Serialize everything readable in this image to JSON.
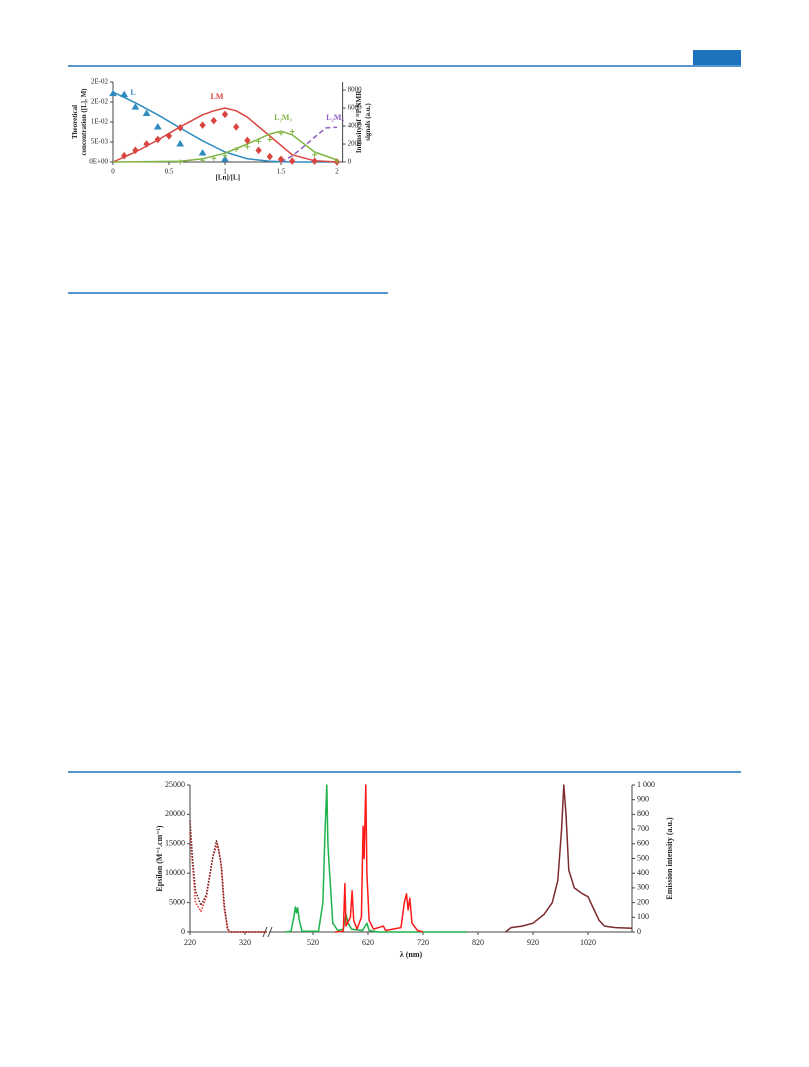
{
  "chart_data": [
    {
      "type": "line",
      "x_label": "[Ln]/[L]",
      "y_label": [
        "Theoretical",
        "concentration ([L], M)"
      ],
      "y2_label": [
        "Intensity of ³¹P NMR",
        "signals (a.u.)"
      ],
      "xlim": [
        0,
        2.05
      ],
      "xticks": [
        0,
        0.5,
        1,
        1.5,
        2
      ],
      "ylim": [
        0,
        0.02
      ],
      "yticks": [
        {
          "value": 0,
          "label": "0E+00"
        },
        {
          "value": 0.005,
          "label": "5E-03"
        },
        {
          "value": 0.01,
          "label": "1E-02"
        },
        {
          "value": 0.015,
          "label": "2E-02"
        },
        {
          "value": 0.02,
          "label": "2E-02"
        }
      ],
      "y2lim": [
        0,
        8900
      ],
      "y2ticks": [
        0,
        2000,
        4000,
        6000,
        8000
      ],
      "series": [
        {
          "name": "L",
          "color": "#2e8bc0",
          "x": [
            0,
            0.2,
            0.4,
            0.6,
            0.8,
            1.0,
            1.2,
            1.4,
            1.6,
            2.0
          ],
          "values": [
            0.0175,
            0.0148,
            0.0118,
            0.0085,
            0.0053,
            0.0025,
            0.0008,
            0.0002,
            0,
            0
          ]
        },
        {
          "name": "LM",
          "color": "#d9453f",
          "x": [
            0,
            0.2,
            0.4,
            0.6,
            0.8,
            0.9,
            1.0,
            1.1,
            1.2,
            1.4,
            1.6,
            1.8,
            2.0
          ],
          "values": [
            0,
            0.0025,
            0.0055,
            0.0088,
            0.0118,
            0.0128,
            0.0135,
            0.0128,
            0.0112,
            0.0065,
            0.0018,
            0.0003,
            0
          ]
        },
        {
          "name": "L₂M₃",
          "color": "#7fb342",
          "x": [
            0,
            0.6,
            0.8,
            1.0,
            1.2,
            1.4,
            1.5,
            1.6,
            1.8,
            2.0
          ],
          "values": [
            0,
            0.0002,
            0.0008,
            0.0022,
            0.0045,
            0.007,
            0.0077,
            0.0068,
            0.0025,
            0.0005
          ]
        },
        {
          "name": "L₂M₆",
          "color": "#8e5fc2",
          "dash": "dashed",
          "x": [
            1.5,
            1.6,
            1.7,
            1.8,
            1.9,
            2.0
          ],
          "values": [
            0,
            0.0015,
            0.0038,
            0.0062,
            0.0085,
            0.0087
          ]
        },
        {
          "color": "#2e8bc0",
          "marker": "triangle",
          "axis": "y2",
          "x": [
            0,
            0.1,
            0.2,
            0.3,
            0.4,
            0.6,
            0.8,
            1.0
          ],
          "values": [
            7600,
            7500,
            6100,
            5400,
            3900,
            2000,
            1000,
            300
          ]
        },
        {
          "color": "#d9453f",
          "marker": "diamond",
          "axis": "y2",
          "x": [
            0.1,
            0.2,
            0.3,
            0.4,
            0.5,
            0.6,
            0.8,
            0.9,
            1.0,
            1.1,
            1.2,
            1.3,
            1.4,
            1.5,
            1.6,
            1.8,
            2.0
          ],
          "values": [
            700,
            1300,
            2000,
            2500,
            2900,
            3800,
            4100,
            4600,
            5300,
            3900,
            2400,
            1300,
            600,
            300,
            100,
            100,
            0
          ]
        },
        {
          "color": "#7fb342",
          "marker": "plus",
          "axis": "y2",
          "x": [
            0.6,
            0.8,
            0.9,
            1.0,
            1.1,
            1.2,
            1.3,
            1.4,
            1.5,
            1.6,
            1.8,
            2.0
          ],
          "values": [
            0,
            200,
            400,
            700,
            1400,
            1700,
            2300,
            2500,
            3200,
            3400,
            800,
            100
          ]
        }
      ]
    },
    {
      "type": "line",
      "x_label": "λ (nm)",
      "y_label": [
        "Epsilon (M⁻¹.cm⁻¹)"
      ],
      "y2_label": [
        "Emission intensity (a.u.)"
      ],
      "xlim": [
        220,
        1100
      ],
      "x_break": [
        360,
        440
      ],
      "xticks": [
        220,
        320,
        520,
        620,
        720,
        820,
        920,
        1020
      ],
      "ylim": [
        0,
        25000
      ],
      "yticks": [
        0,
        5000,
        10000,
        15000,
        20000,
        25000
      ],
      "y2lim": [
        0,
        1000
      ],
      "y2ticks": [
        0,
        100,
        200,
        300,
        400,
        500,
        600,
        700,
        800,
        900,
        {
          "value": 1000,
          "label": "1 000"
        }
      ],
      "series": [
        {
          "color": "#e03030",
          "dash": "dotted",
          "x": [
            220,
            230,
            240,
            250,
            262,
            270,
            276,
            282,
            290,
            360
          ],
          "values": [
            17000,
            5000,
            3500,
            6000,
            13000,
            15000,
            12000,
            4000,
            0,
            0
          ]
        },
        {
          "color": "#6e1f1f",
          "dash": "dotted",
          "x": [
            220,
            225,
            230,
            240,
            250,
            260,
            268,
            272,
            278,
            282,
            288,
            295,
            320,
            360
          ],
          "values": [
            19000,
            12000,
            7000,
            4500,
            6500,
            12000,
            15500,
            14000,
            10500,
            5000,
            500,
            0,
            0,
            0
          ]
        },
        {
          "color": "#1db34a",
          "axis": "y2",
          "x": [
            470,
            480,
            485,
            488,
            490,
            492,
            495,
            500,
            530,
            538,
            542,
            545,
            547,
            549,
            552,
            556,
            565,
            575,
            580,
            584,
            590,
            610,
            618,
            622,
            640,
            800
          ],
          "values": [
            0,
            5,
            100,
            170,
            130,
            165,
            80,
            5,
            5,
            200,
            700,
            1000,
            600,
            480,
            300,
            60,
            10,
            20,
            120,
            60,
            20,
            10,
            60,
            10,
            0,
            0
          ]
        },
        {
          "color": "#ff1a1a",
          "axis": "y2",
          "x": [
            560,
            575,
            578,
            580,
            588,
            591,
            594,
            600,
            608,
            611,
            613,
            616,
            618,
            622,
            630,
            648,
            652,
            680,
            686,
            690,
            693,
            696,
            700,
            710,
            720
          ],
          "values": [
            0,
            5,
            330,
            40,
            100,
            280,
            80,
            20,
            100,
            720,
            500,
            1000,
            400,
            80,
            20,
            40,
            10,
            30,
            200,
            260,
            150,
            230,
            60,
            10,
            0
          ]
        },
        {
          "color": "#7b2b2b",
          "axis": "y2",
          "x": [
            870,
            880,
            900,
            920,
            940,
            955,
            965,
            972,
            976,
            980,
            985,
            995,
            1010,
            1020,
            1030,
            1040,
            1050,
            1070,
            1100
          ],
          "values": [
            0,
            30,
            40,
            60,
            120,
            200,
            350,
            700,
            1000,
            800,
            420,
            300,
            260,
            240,
            160,
            80,
            40,
            30,
            25
          ]
        }
      ]
    }
  ]
}
